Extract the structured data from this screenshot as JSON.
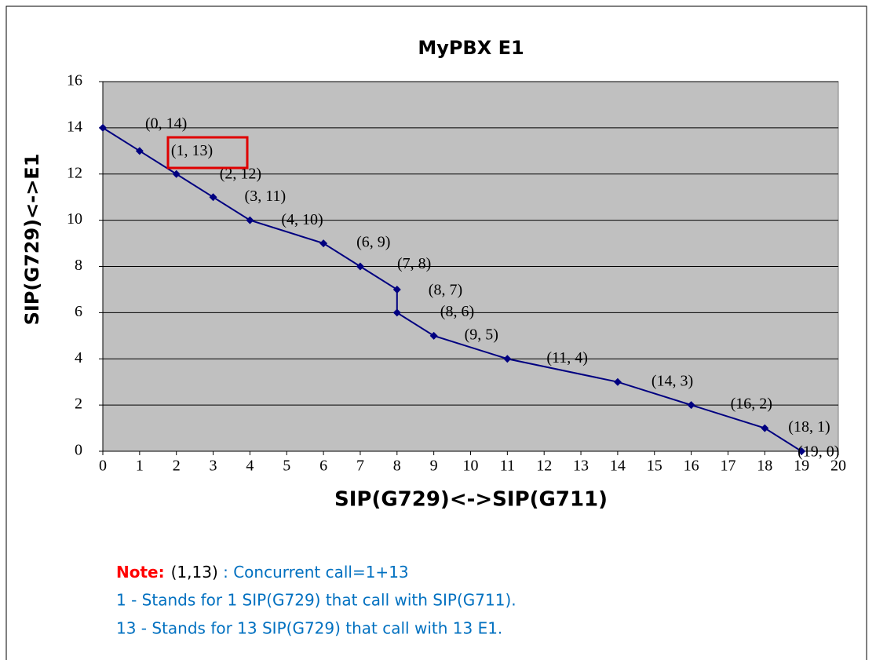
{
  "chart_data": {
    "type": "line",
    "title": "MyPBX E1",
    "x_label": "SIP(G729)<->SIP(G711)",
    "y_label": "SIP(G729)<->E1",
    "x": [
      0,
      1,
      2,
      3,
      4,
      6,
      7,
      8,
      8,
      9,
      11,
      14,
      16,
      18,
      19
    ],
    "series": [
      {
        "name": "MyPBX E1",
        "color": "#000080",
        "values": [
          14,
          13,
          12,
          11,
          10,
          9,
          8,
          7,
          6,
          5,
          4,
          3,
          2,
          1,
          0
        ],
        "value_labels": [
          "(0, 14)",
          "(1, 13)",
          "(2, 12)",
          "(3, 11)",
          "(4, 10)",
          "(6, 9)",
          "(7, 8)",
          "(8, 7)",
          "(8, 6)",
          "(9, 5)",
          "(11, 4)",
          "(14, 3)",
          "(16, 2)",
          "(18, 1)",
          "(19, 0)"
        ]
      }
    ],
    "xlim": [
      0,
      20
    ],
    "xticks": [
      0,
      1,
      2,
      3,
      4,
      5,
      6,
      7,
      8,
      9,
      10,
      11,
      12,
      13,
      14,
      15,
      16,
      17,
      18,
      19,
      20
    ],
    "ylim": [
      0,
      16
    ],
    "yticks": [
      0,
      2,
      4,
      6,
      8,
      10,
      12,
      14,
      16
    ],
    "grid": true,
    "plot_background": "#c0c0c0",
    "notes": {
      "label": "Note:",
      "example": "(1,13)",
      "text": " : Concurrent call=1+13",
      "lines": [
        "1 - Stands for 1 SIP(G729) that call with SIP(G711).",
        "13 - Stands for 13 SIP(G729) that call with 13 E1."
      ]
    }
  }
}
